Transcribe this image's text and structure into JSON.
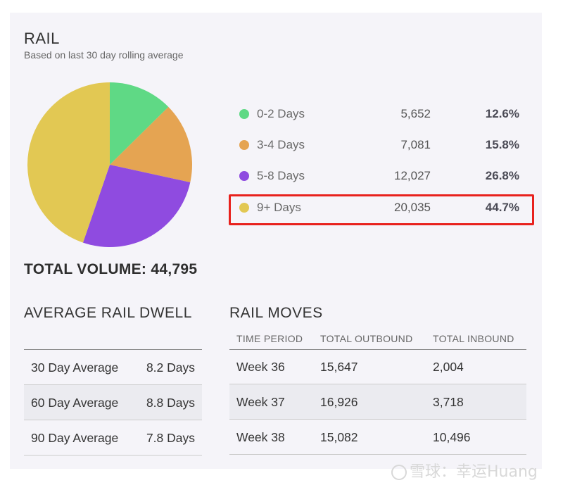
{
  "header": {
    "title": "RAIL",
    "subtitle": "Based on last 30 day rolling average"
  },
  "chart_data": {
    "type": "pie",
    "categories": [
      "0-2 Days",
      "3-4 Days",
      "5-8 Days",
      "9+ Days"
    ],
    "values": [
      5652,
      7081,
      12027,
      20035
    ],
    "percent_labels": [
      "12.6%",
      "15.8%",
      "26.8%",
      "44.7%"
    ],
    "count_labels": [
      "5,652",
      "7,081",
      "12,027",
      "20,035"
    ],
    "colors": [
      "#5fd985",
      "#e5a452",
      "#8f4be0",
      "#e2c853"
    ],
    "start_angle_deg": 0,
    "direction": "clockwise"
  },
  "highlight": {
    "category": "9+ Days",
    "color": "#e8211d"
  },
  "total_volume": "TOTAL VOLUME: 44,795",
  "dwell": {
    "title": "AVERAGE RAIL DWELL",
    "rows": [
      {
        "label": "30 Day Average",
        "value": "8.2 Days"
      },
      {
        "label": "60 Day Average",
        "value": "8.8 Days"
      },
      {
        "label": "90 Day Average",
        "value": "7.8 Days"
      }
    ]
  },
  "moves": {
    "title": "RAIL MOVES",
    "columns": [
      "TIME PERIOD",
      "TOTAL OUTBOUND",
      "TOTAL INBOUND"
    ],
    "rows": [
      [
        "Week 36",
        "15,647",
        "2,004"
      ],
      [
        "Week 37",
        "16,926",
        "3,718"
      ],
      [
        "Week 38",
        "15,082",
        "10,496"
      ]
    ]
  },
  "watermark": "雪球：幸运Huang"
}
